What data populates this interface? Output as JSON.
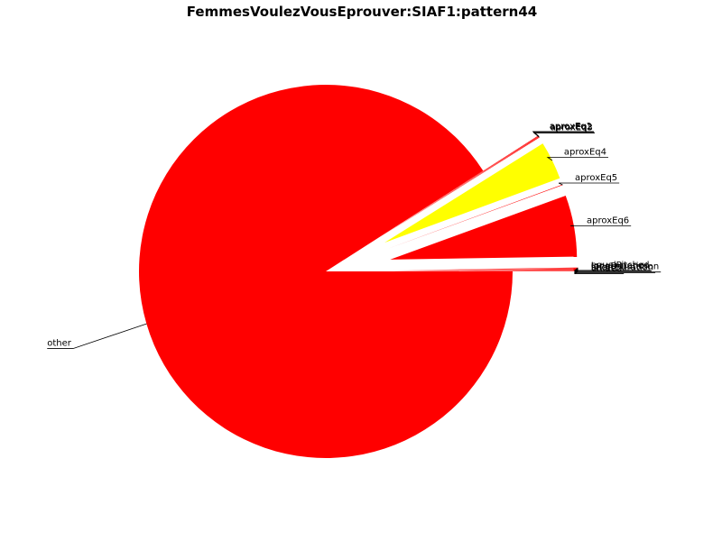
{
  "chart_data": {
    "type": "pie",
    "title": "FemmesVoulezVousEprouver:SIAF1:pattern44",
    "slices": [
      {
        "label": "other",
        "value": 90.8,
        "color": "#ff0000",
        "exploded": false
      },
      {
        "label": "aproxEq1",
        "value": 0.05,
        "color": "#ff0000",
        "exploded": true
      },
      {
        "label": "aproxEq2",
        "value": 0.05,
        "color": "#ff0000",
        "exploded": true
      },
      {
        "label": "aproxEq3",
        "value": 0.05,
        "color": "#ff0000",
        "exploded": true
      },
      {
        "label": "aproxEq4",
        "value": 3.3,
        "color": "#ffff00",
        "exploded": true
      },
      {
        "label": "aproxEq5",
        "value": 0.05,
        "color": "#ff0000",
        "exploded": true
      },
      {
        "label": "aproxEq6",
        "value": 5.3,
        "color": "#ff0000",
        "exploded": true
      },
      {
        "label": "equalPitched",
        "value": 0.05,
        "color": "#ff0000",
        "exploded": true
      },
      {
        "label": "longDuration",
        "value": 0.05,
        "color": "#ff0000",
        "exploded": true
      },
      {
        "label": "longerDuration",
        "value": 0.05,
        "color": "#ff0000",
        "exploded": true
      },
      {
        "label": "shortDuration",
        "value": 0.05,
        "color": "#ff0000",
        "exploded": true
      },
      {
        "label": "unified",
        "value": 0.05,
        "color": "#ff0000",
        "exploded": true
      }
    ]
  }
}
